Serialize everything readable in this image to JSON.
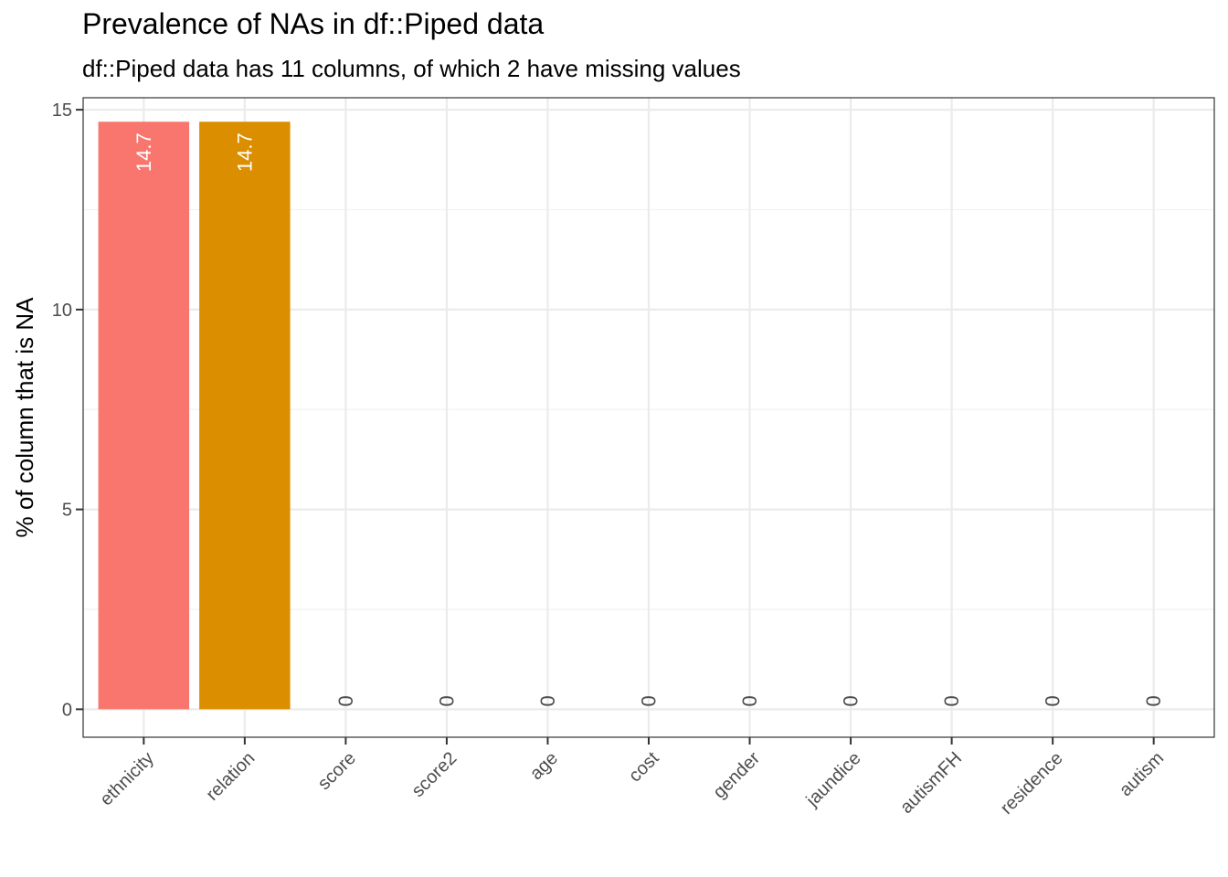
{
  "chart_data": {
    "type": "bar",
    "title": "Prevalence of NAs in df::Piped data",
    "subtitle": "df::Piped data has 11 columns, of which 2 have missing values",
    "xlabel": "",
    "ylabel": "% of column that is NA",
    "ylim": [
      -0.7,
      15.3
    ],
    "yticks": [
      0,
      5,
      10,
      15
    ],
    "grid": true,
    "legend": "none",
    "categories": [
      "ethnicity",
      "relation",
      "score",
      "score2",
      "age",
      "cost",
      "gender",
      "jaundice",
      "autismFH",
      "residence",
      "autism"
    ],
    "values": [
      14.7,
      14.7,
      0,
      0,
      0,
      0,
      0,
      0,
      0,
      0,
      0
    ],
    "value_labels": [
      "14.7",
      "14.7",
      "0",
      "0",
      "0",
      "0",
      "0",
      "0",
      "0",
      "0",
      "0"
    ],
    "bar_colors": [
      "#F8766D",
      "#DB8E00"
    ]
  }
}
